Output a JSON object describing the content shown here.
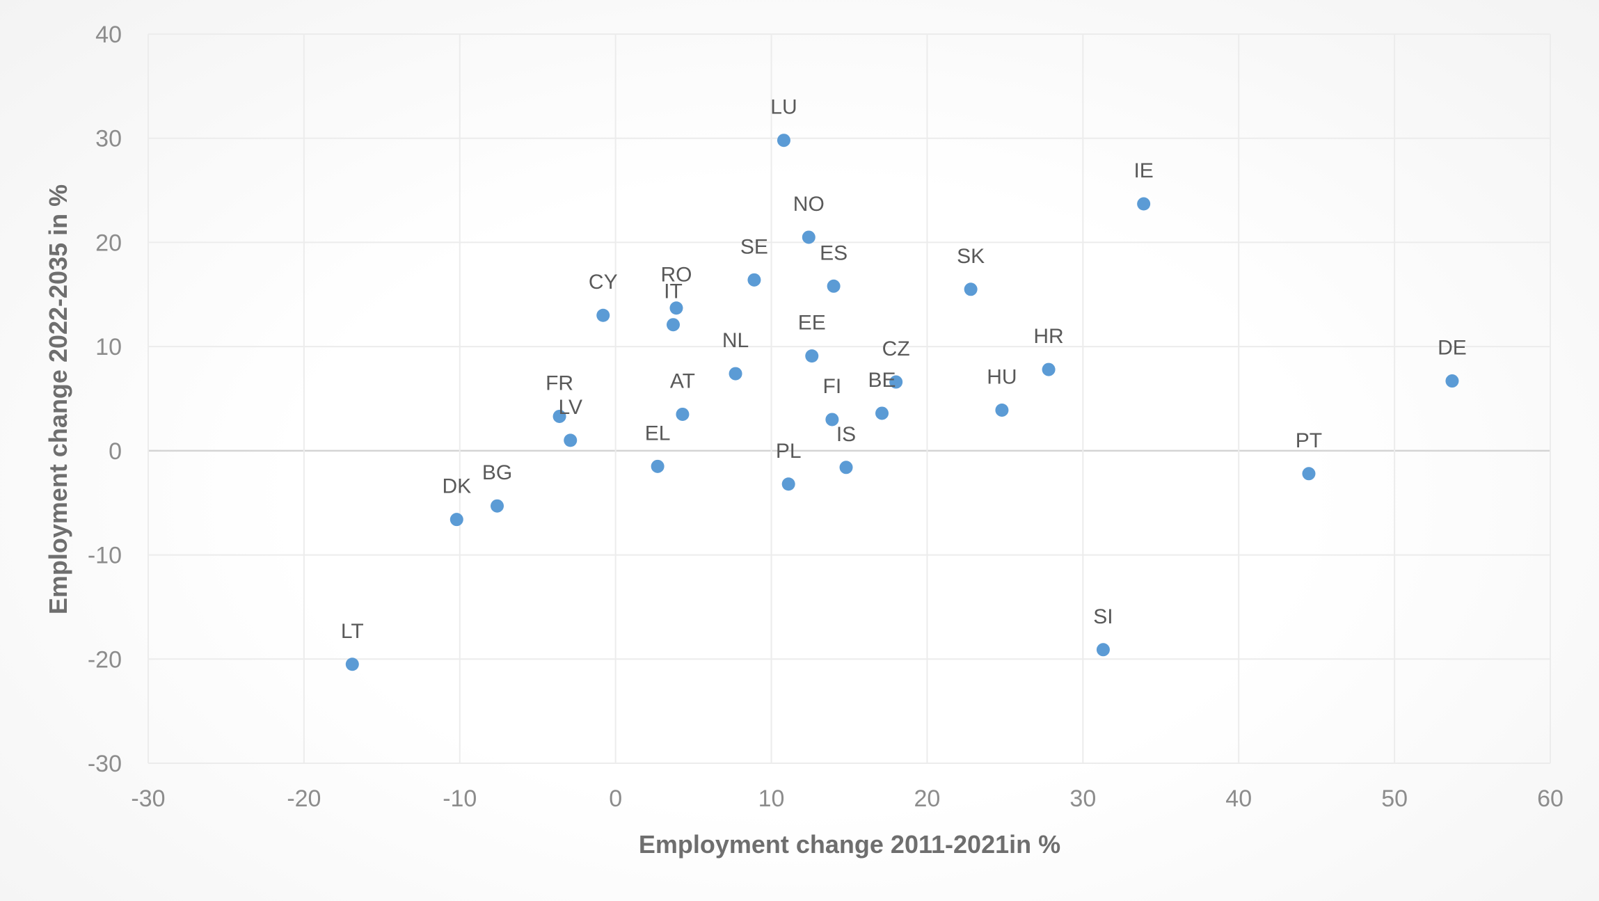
{
  "chart_data": {
    "type": "scatter",
    "title": "",
    "xlabel": "Employment change 2011-2021in %",
    "ylabel": "Employment change 2022-2035 in %",
    "xlim": [
      -30,
      60
    ],
    "ylim": [
      -30,
      40
    ],
    "x_ticks": [
      -30,
      -20,
      -10,
      0,
      10,
      20,
      30,
      40,
      50,
      60
    ],
    "y_ticks": [
      -30,
      -20,
      -10,
      0,
      10,
      20,
      30,
      40
    ],
    "grid": true,
    "legend": "none",
    "series_color": "#5b9bd5",
    "points": [
      {
        "label": "LU",
        "x": 10.8,
        "y": 29.8
      },
      {
        "label": "IE",
        "x": 33.9,
        "y": 23.7
      },
      {
        "label": "NO",
        "x": 12.4,
        "y": 20.5
      },
      {
        "label": "SE",
        "x": 8.9,
        "y": 16.4
      },
      {
        "label": "ES",
        "x": 14.0,
        "y": 15.8
      },
      {
        "label": "SK",
        "x": 22.8,
        "y": 15.5
      },
      {
        "label": "RO",
        "x": 3.9,
        "y": 13.7
      },
      {
        "label": "CY",
        "x": -0.8,
        "y": 13.0
      },
      {
        "label": "IT",
        "x": 3.7,
        "y": 12.1
      },
      {
        "label": "EE",
        "x": 12.6,
        "y": 9.1
      },
      {
        "label": "HR",
        "x": 27.8,
        "y": 7.8
      },
      {
        "label": "NL",
        "x": 7.7,
        "y": 7.4
      },
      {
        "label": "DE",
        "x": 53.7,
        "y": 6.7
      },
      {
        "label": "CZ",
        "x": 18.0,
        "y": 6.6
      },
      {
        "label": "HU",
        "x": 24.8,
        "y": 3.9
      },
      {
        "label": "BE",
        "x": 17.1,
        "y": 3.6
      },
      {
        "label": "AT",
        "x": 4.3,
        "y": 3.5
      },
      {
        "label": "FR",
        "x": -3.6,
        "y": 3.3
      },
      {
        "label": "FI",
        "x": 13.9,
        "y": 3.0
      },
      {
        "label": "LV",
        "x": -2.9,
        "y": 1.0
      },
      {
        "label": "EL",
        "x": 2.7,
        "y": -1.5
      },
      {
        "label": "IS",
        "x": 14.8,
        "y": -1.6
      },
      {
        "label": "PT",
        "x": 44.5,
        "y": -2.2
      },
      {
        "label": "PL",
        "x": 11.1,
        "y": -3.2
      },
      {
        "label": "BG",
        "x": -7.6,
        "y": -5.3
      },
      {
        "label": "DK",
        "x": -10.2,
        "y": -6.6
      },
      {
        "label": "SI",
        "x": 31.3,
        "y": -19.1
      },
      {
        "label": "LT",
        "x": -16.9,
        "y": -20.5
      }
    ]
  }
}
